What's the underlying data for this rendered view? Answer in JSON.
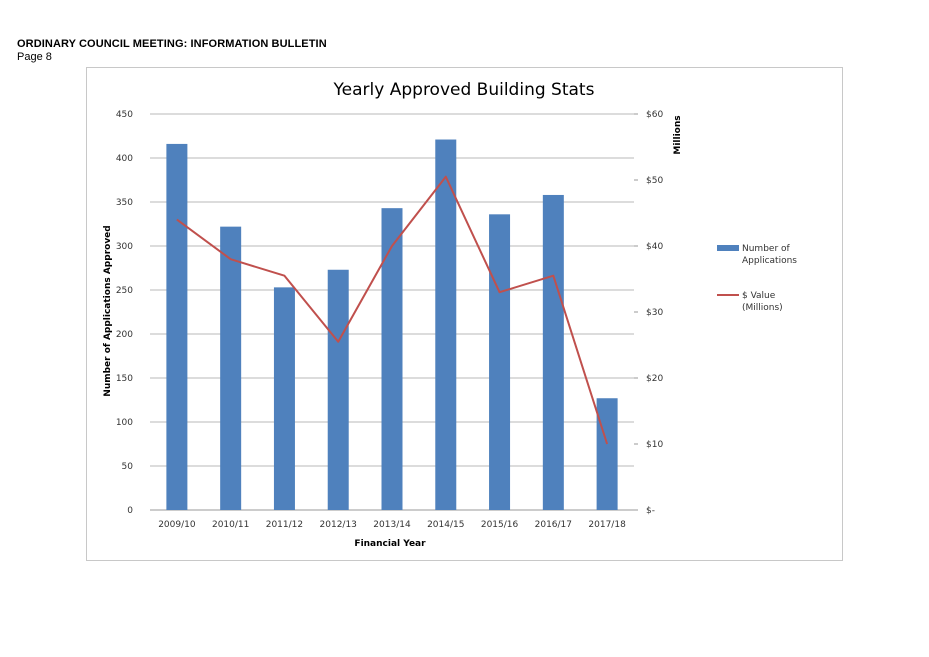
{
  "document": {
    "title": "ORDINARY COUNCIL MEETING: INFORMATION BULLETIN",
    "page": "Page 8"
  },
  "chart_data": {
    "type": "bar+line",
    "title": "Yearly Approved Building Stats",
    "xlabel": "Financial Year",
    "ylabel": "Number of Applications Approved",
    "y2label": "Millions",
    "categories": [
      "2009/10",
      "2010/11",
      "2011/12",
      "2012/13",
      "2013/14",
      "2014/15",
      "2015/16",
      "2016/17",
      "2017/18"
    ],
    "ylim": [
      0,
      450
    ],
    "y_ticks": [
      0,
      50,
      100,
      150,
      200,
      250,
      300,
      350,
      400,
      450
    ],
    "y_tick_labels": [
      "0",
      "50",
      "100",
      "150",
      "200",
      "250",
      "300",
      "350",
      "400",
      "450"
    ],
    "y2lim": [
      0,
      60
    ],
    "y2_ticks": [
      0,
      10,
      20,
      30,
      40,
      50,
      60
    ],
    "y2_tick_labels": [
      "$-",
      "$10",
      "$20",
      "$30",
      "$40",
      "$50",
      "$60"
    ],
    "grid": true,
    "legend_position": "right",
    "series": [
      {
        "name": "Number of Applications",
        "type": "bar",
        "axis": "left",
        "color": "#4f81bd",
        "values": [
          416,
          322,
          253,
          273,
          343,
          421,
          336,
          358,
          127
        ]
      },
      {
        "name": "$ Value (Millions)",
        "type": "line",
        "axis": "right",
        "color": "#c0504d",
        "values": [
          44,
          38,
          35.5,
          25.5,
          40,
          50.5,
          33,
          35.5,
          10
        ]
      }
    ],
    "legend": [
      {
        "lines": [
          "Number of",
          "Applications"
        ],
        "color": "#4f81bd",
        "kind": "bar"
      },
      {
        "lines": [
          "$ Value",
          "(Millions)"
        ],
        "color": "#c0504d",
        "kind": "line"
      }
    ]
  }
}
